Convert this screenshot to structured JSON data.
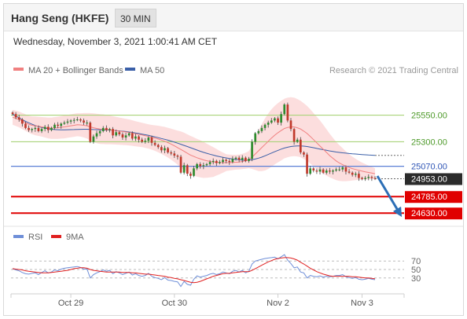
{
  "header": {
    "title": "Hang Seng (HKFE)",
    "interval": "30 MIN",
    "datetime": "Wednesday, November 3, 2021 1:00:41 AM CET"
  },
  "legend": {
    "ma20_bb": "MA 20 + Bollinger Bands",
    "ma50": "MA 50",
    "credit": "Research © 2021 Trading Central",
    "rsi": "RSI",
    "rsi_ma": "9MA"
  },
  "colors": {
    "up": "#2e8b2e",
    "down": "#c0392b",
    "ma20": "#f08080",
    "band_fill": "#fbd8d8",
    "ma50": "#3a5fa8",
    "level_green": "#a9d37a",
    "level_blue": "#5b7fd6",
    "level_red": "#e00000",
    "current_label": "#2b2b2b",
    "arrow": "#2d6fb6",
    "rsi_line": "#6f8fd8",
    "rsi_ma_line": "#e02020"
  },
  "chart_data": [
    {
      "type": "candlestick",
      "x_ticks": [
        "Oct 29",
        "Oct 30",
        "Nov 2",
        "Nov 3"
      ],
      "ylim": [
        24580,
        25820
      ],
      "levels": [
        {
          "name": "resistance-2",
          "value": 25550,
          "label": "25550.00",
          "style": "green"
        },
        {
          "name": "resistance-1",
          "value": 25300,
          "label": "25300.00",
          "style": "green"
        },
        {
          "name": "pivot",
          "value": 25070,
          "label": "25070.00",
          "style": "blue"
        },
        {
          "name": "current",
          "value": 24953,
          "label": "24953.00",
          "style": "current"
        },
        {
          "name": "support-1",
          "value": 24785,
          "label": "24785.00",
          "style": "red"
        },
        {
          "name": "support-2",
          "value": 24630,
          "label": "24630.00",
          "style": "red"
        }
      ],
      "close": [
        25560,
        25530,
        25510,
        25470,
        25430,
        25410,
        25420,
        25430,
        25400,
        25420,
        25440,
        25410,
        25430,
        25460,
        25450,
        25470,
        25480,
        25490,
        25500,
        25505,
        25510,
        25500,
        25480,
        25480,
        25300,
        25350,
        25380,
        25400,
        25430,
        25410,
        25420,
        25360,
        25390,
        25370,
        25340,
        25360,
        25380,
        25330,
        25350,
        25320,
        25300,
        25310,
        25340,
        25290,
        25270,
        25250,
        25220,
        25240,
        25200,
        25190,
        25170,
        25160,
        25010,
        25080,
        25000,
        24980,
        25050,
        25090,
        25070,
        25080,
        25090,
        25110,
        25120,
        25100,
        25110,
        25130,
        25120,
        25110,
        25140,
        25150,
        25130,
        25150,
        25120,
        25140,
        25300,
        25380,
        25400,
        25430,
        25460,
        25480,
        25500,
        25520,
        25480,
        25560,
        25650,
        25500,
        25420,
        25300,
        25320,
        25200,
        25180,
        25000,
        25050,
        25030,
        25020,
        25040,
        25010,
        25030,
        25020,
        25030,
        25040,
        25040,
        25060,
        25020,
        25010,
        24990,
        25000,
        24960,
        24950,
        24960,
        24970,
        24960,
        24953
      ],
      "ma20": [
        25530,
        25520,
        25510,
        25495,
        25480,
        25465,
        25455,
        25450,
        25445,
        25440,
        25435,
        25430,
        25428,
        25430,
        25432,
        25436,
        25440,
        25445,
        25450,
        25455,
        25460,
        25458,
        25455,
        25450,
        25440,
        25432,
        25425,
        25420,
        25418,
        25415,
        25412,
        25408,
        25404,
        25400,
        25396,
        25392,
        25388,
        25382,
        25375,
        25370,
        25364,
        25357,
        25350,
        25342,
        25335,
        25326,
        25316,
        25305,
        25292,
        25278,
        25262,
        25245,
        25228,
        25210,
        25192,
        25175,
        25162,
        25150,
        25140,
        25130,
        25122,
        25116,
        25110,
        25108,
        25105,
        25104,
        25104,
        25105,
        25106,
        25108,
        25110,
        25115,
        25122,
        25132,
        25155,
        25185,
        25215,
        25245,
        25275,
        25305,
        25335,
        25362,
        25385,
        25405,
        25425,
        25435,
        25440,
        25440,
        25432,
        25420,
        25400,
        25378,
        25350,
        25320,
        25290,
        25260,
        25230,
        25200,
        25170,
        25145,
        25120,
        25100,
        25085,
        25070,
        25058,
        25048,
        25040,
        25032,
        25025,
        25018,
        25012,
        25006,
        25000
      ],
      "bb_width": [
        70,
        72,
        74,
        76,
        78,
        80,
        84,
        88,
        90,
        92,
        95,
        98,
        100,
        102,
        104,
        106,
        108,
        108,
        108,
        108,
        108,
        110,
        115,
        120,
        130,
        135,
        138,
        140,
        140,
        138,
        135,
        132,
        130,
        128,
        126,
        124,
        122,
        120,
        118,
        116,
        114,
        114,
        114,
        116,
        120,
        125,
        130,
        135,
        140,
        146,
        152,
        160,
        170,
        175,
        178,
        180,
        180,
        178,
        175,
        170,
        160,
        150,
        140,
        125,
        110,
        95,
        80,
        75,
        72,
        70,
        70,
        72,
        75,
        80,
        110,
        150,
        190,
        220,
        245,
        260,
        270,
        275,
        278,
        280,
        280,
        280,
        278,
        275,
        270,
        265,
        262,
        258,
        255,
        250,
        245,
        240,
        230,
        218,
        205,
        192,
        180,
        168,
        155,
        140,
        125,
        112,
        100,
        90,
        80,
        72,
        65,
        58,
        52
      ],
      "ma50": [
        25560,
        25542,
        25525,
        25508,
        25492,
        25478,
        25465,
        25453,
        25443,
        25435,
        25428,
        25422,
        25418,
        25415,
        25413,
        25412,
        25412,
        25413,
        25414,
        25415,
        25416,
        25417,
        25418,
        25418,
        25416,
        25415,
        25414,
        25413,
        25412,
        25411,
        25410,
        25408,
        25405,
        25402,
        25399,
        25396,
        25392,
        25388,
        25383,
        25378,
        25372,
        25366,
        25360,
        25353,
        25346,
        25339,
        25331,
        25323,
        25315,
        25306,
        25297,
        25287,
        25277,
        25266,
        25255,
        25244,
        25233,
        25222,
        25211,
        25201,
        25192,
        25183,
        25175,
        25167,
        25160,
        25154,
        25148,
        25143,
        25138,
        25134,
        25131,
        25128,
        25127,
        25128,
        25132,
        25138,
        25146,
        25156,
        25168,
        25181,
        25194,
        25207,
        25219,
        25231,
        25241,
        25249,
        25255,
        25259,
        25261,
        25261,
        25259,
        25255,
        25250,
        25244,
        25238,
        25232,
        25226,
        25220,
        25214,
        25209,
        25204,
        25200,
        25196,
        25193,
        25190,
        25187,
        25185,
        25182,
        25180,
        25178,
        25176,
        25174,
        25172
      ]
    },
    {
      "type": "line",
      "series": [
        {
          "name": "RSI",
          "values": [
            52,
            49,
            47,
            43,
            40,
            39,
            41,
            42,
            38,
            43,
            47,
            42,
            44,
            49,
            47,
            51,
            53,
            54,
            55,
            56,
            57,
            55,
            51,
            51,
            30,
            38,
            42,
            45,
            49,
            46,
            48,
            40,
            45,
            42,
            38,
            41,
            44,
            37,
            40,
            36,
            34,
            36,
            41,
            34,
            31,
            29,
            26,
            31,
            25,
            24,
            22,
            21,
            10,
            22,
            15,
            13,
            27,
            35,
            32,
            34,
            36,
            39,
            41,
            38,
            40,
            44,
            42,
            40,
            46,
            48,
            44,
            48,
            42,
            46,
            63,
            70,
            72,
            74,
            76,
            77,
            78,
            79,
            75,
            80,
            85,
            72,
            64,
            54,
            56,
            44,
            42,
            30,
            36,
            34,
            33,
            35,
            32,
            34,
            33,
            34,
            36,
            36,
            38,
            33,
            31,
            29,
            31,
            27,
            26,
            27,
            29,
            27,
            26
          ]
        },
        {
          "name": "9MA",
          "values": [
            52,
            51,
            50,
            49,
            47,
            46,
            45,
            44,
            43,
            42,
            42,
            42,
            43,
            44,
            45,
            46,
            47,
            48,
            50,
            52,
            53,
            54,
            54,
            53,
            50,
            48,
            47,
            46,
            45,
            44,
            44,
            44,
            44,
            44,
            43,
            43,
            43,
            42,
            42,
            41,
            40,
            39,
            39,
            38,
            37,
            36,
            35,
            34,
            32,
            31,
            29,
            28,
            26,
            24,
            22,
            20,
            19,
            20,
            22,
            25,
            28,
            31,
            34,
            36,
            38,
            40,
            41,
            41,
            42,
            43,
            44,
            45,
            45,
            45,
            48,
            52,
            56,
            60,
            64,
            68,
            71,
            74,
            76,
            77,
            78,
            78,
            77,
            75,
            72,
            67,
            63,
            58,
            53,
            49,
            45,
            42,
            39,
            37,
            35,
            34,
            34,
            34,
            34,
            34,
            34,
            33,
            33,
            32,
            31,
            30,
            30,
            29,
            28
          ]
        }
      ],
      "ylim": [
        0,
        100
      ],
      "levels": [
        70,
        50,
        30
      ],
      "level_labels": [
        "70",
        "50",
        "30"
      ]
    }
  ]
}
